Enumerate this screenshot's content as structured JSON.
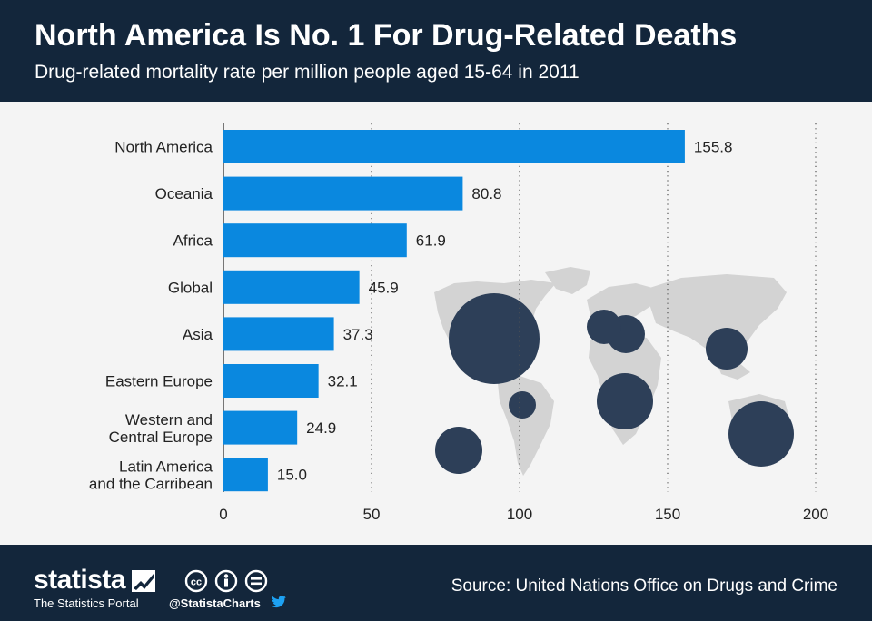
{
  "header": {
    "title": "North America Is No. 1 For Drug-Related Deaths",
    "subtitle": "Drug-related mortality rate per million people aged 15-64 in 2011"
  },
  "chart_data": {
    "type": "bar",
    "orientation": "horizontal",
    "categories": [
      "North America",
      "Oceania",
      "Africa",
      "Global",
      "Asia",
      "Eastern Europe",
      "Western and Central Europe",
      "Latin America and the Carribean"
    ],
    "values": [
      155.8,
      80.8,
      61.9,
      45.9,
      37.3,
      32.1,
      24.9,
      15.0
    ],
    "value_labels": [
      "155.8",
      "80.8",
      "61.9",
      "45.9",
      "37.3",
      "32.1",
      "24.9",
      "15.0"
    ],
    "x_ticks": [
      "0",
      "50",
      "100",
      "150",
      "200"
    ],
    "xlim": [
      0,
      200
    ],
    "grid": "vertical dotted",
    "bar_color": "#0a88df",
    "background_graphic": "world map with circles sized by region"
  },
  "footer": {
    "brand": "statista",
    "tagline": "The Statistics Portal",
    "handle": "@StatistaCharts",
    "source": "Source: United Nations Office on Drugs and Crime"
  },
  "colors": {
    "header_bg": "#13263b",
    "footer_bg": "#13263b",
    "bar": "#0a88df",
    "bubble": "#2d3f58",
    "map": "#d3d3d3"
  }
}
